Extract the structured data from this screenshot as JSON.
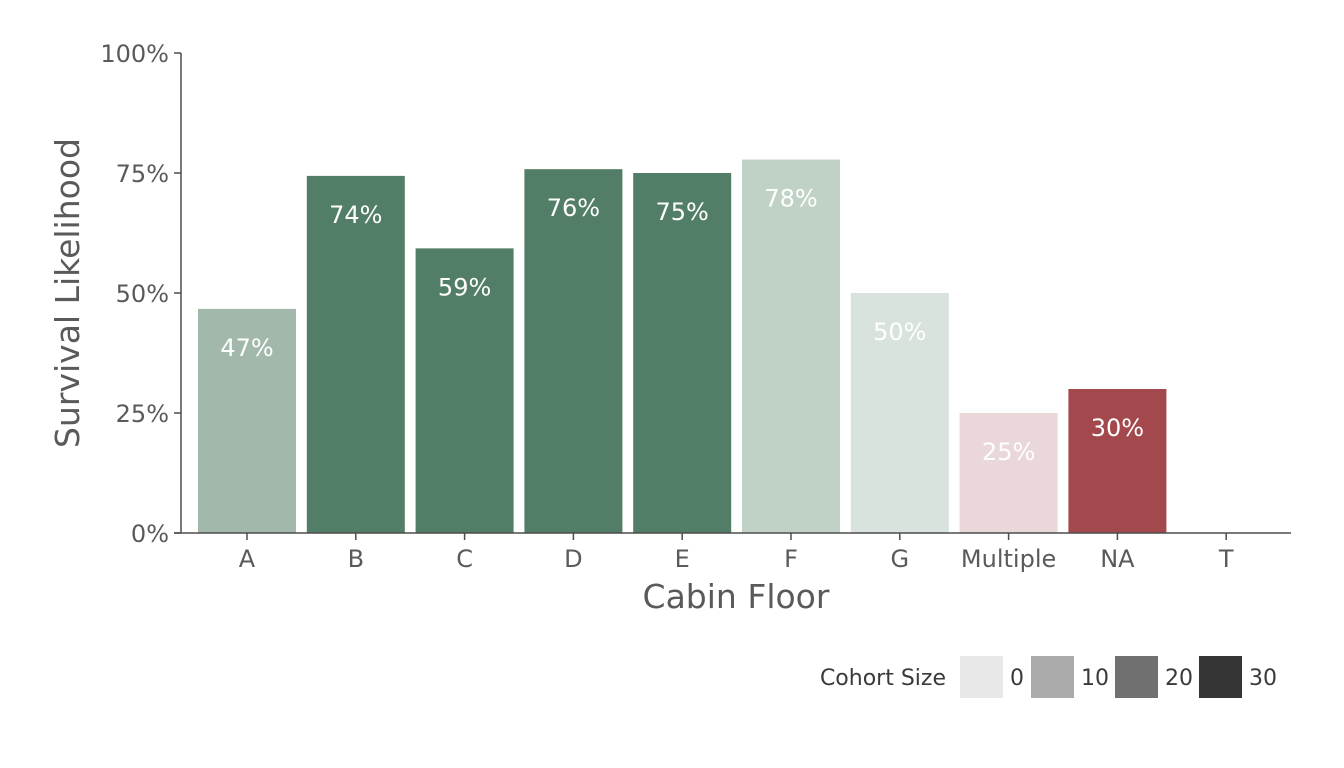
{
  "chart_data": {
    "type": "bar",
    "xlabel": "Cabin Floor",
    "ylabel": "Survival Likelihood",
    "ylim": [
      0,
      1
    ],
    "y_ticks": [
      0,
      0.25,
      0.5,
      0.75,
      1.0
    ],
    "y_tick_labels": [
      "0%",
      "25%",
      "50%",
      "75%",
      "100%"
    ],
    "categories": [
      "A",
      "B",
      "C",
      "D",
      "E",
      "F",
      "G",
      "Multiple",
      "NA",
      "T"
    ],
    "values": [
      0.467,
      0.744,
      0.593,
      0.758,
      0.75,
      0.778,
      0.5,
      0.25,
      0.3,
      0.0
    ],
    "labels": [
      "47%",
      "74%",
      "59%",
      "76%",
      "75%",
      "78%",
      "50%",
      "25%",
      "30%",
      ""
    ],
    "colors": [
      "#a1b8aa",
      "#527d66",
      "#527d66",
      "#527d66",
      "#527d66",
      "#c0d2c6",
      "#d9e3dd",
      "#ead7d9",
      "#a3484d",
      "#ffffff"
    ],
    "grid": false,
    "legend": {
      "title": "Cohort Size",
      "placement": "bottom-right",
      "items": [
        {
          "label": "0",
          "color": "#e8e8e8"
        },
        {
          "label": "10",
          "color": "#ababab"
        },
        {
          "label": "20",
          "color": "#707070"
        },
        {
          "label": "30",
          "color": "#353535"
        }
      ]
    }
  }
}
